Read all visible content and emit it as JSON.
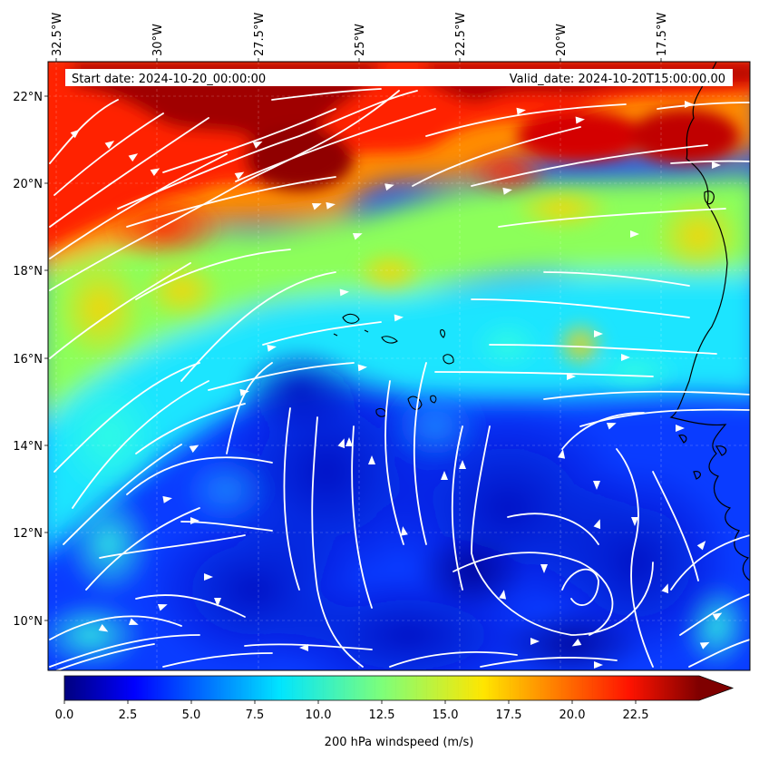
{
  "map": {
    "start_date_label": "Start date: 2024-10-20_00:00:00",
    "valid_date_label": "Valid_date: 2024-10-20T15:00:00.00",
    "lon_ticks": [
      "32.5°W",
      "30°W",
      "27.5°W",
      "25°W",
      "22.5°W",
      "20°W",
      "17.5°W"
    ],
    "lat_ticks": [
      "22°N",
      "20°N",
      "18°N",
      "16°N",
      "14°N",
      "12°N",
      "10°N"
    ],
    "colorbar": {
      "label": "200 hPa windspeed (m/s)",
      "tick_labels": [
        "0.0",
        "2.5",
        "5.0",
        "7.5",
        "10.0",
        "12.5",
        "15.0",
        "17.5",
        "20.0",
        "22.5"
      ],
      "min": 0,
      "max": 25,
      "extend": "max",
      "colormap": "jet"
    },
    "colors": {
      "strong_wind": "#8b0000",
      "calm_wind": "#0000a8",
      "streamlines": "#ffffff",
      "coastline": "#000000"
    }
  }
}
